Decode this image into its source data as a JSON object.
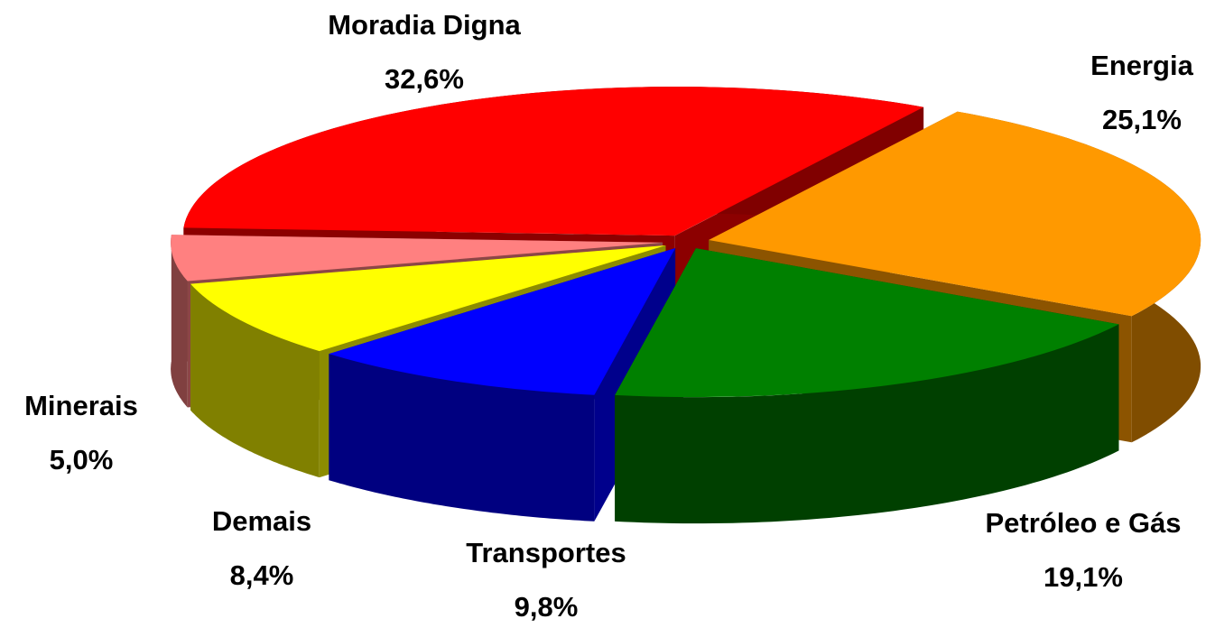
{
  "chart_data": {
    "type": "pie",
    "categories": [
      "Moradia Digna",
      "Energia",
      "Petróleo e Gás",
      "Transportes",
      "Demais",
      "Minerais"
    ],
    "values": [
      32.6,
      25.1,
      19.1,
      9.8,
      8.4,
      5.0
    ],
    "value_labels": [
      "32,6%",
      "25,1%",
      "19,1%",
      "9,8%",
      "8,4%",
      "5,0%"
    ],
    "colors": [
      "#ff0000",
      "#ff9900",
      "#008000",
      "#0000ff",
      "#ffff00",
      "#ff8080"
    ]
  }
}
